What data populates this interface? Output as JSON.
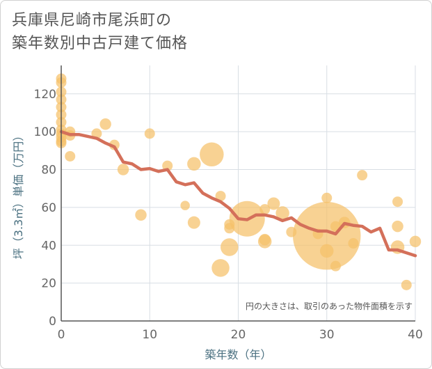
{
  "title_lines": [
    "兵庫県尼崎市尾浜町の",
    "築年数別中古戸建て価格"
  ],
  "chart_data": {
    "type": "scatter",
    "title": "兵庫県尼崎市尾浜町の築年数別中古戸建て価格",
    "xlabel": "築年数（年）",
    "ylabel": "坪（3.3㎡）単価（万円）",
    "xlim": [
      0,
      40
    ],
    "ylim": [
      0,
      135
    ],
    "xticks": [
      0,
      10,
      20,
      30,
      40
    ],
    "yticks": [
      0,
      20,
      40,
      60,
      80,
      100,
      120
    ],
    "grid": true,
    "annotation": "円の大きさは、取引のあった物件面積を示す",
    "colors": {
      "bubble": "#f5c06a",
      "line": "#d4705a",
      "grid": "#d8dee4"
    },
    "scatter": [
      {
        "x": 0,
        "y": 128,
        "s": 1
      },
      {
        "x": 0,
        "y": 126,
        "s": 1
      },
      {
        "x": 0,
        "y": 121,
        "s": 1
      },
      {
        "x": 0,
        "y": 117,
        "s": 1
      },
      {
        "x": 0,
        "y": 113,
        "s": 1
      },
      {
        "x": 0,
        "y": 109,
        "s": 1
      },
      {
        "x": 0,
        "y": 105,
        "s": 1
      },
      {
        "x": 0,
        "y": 101,
        "s": 1
      },
      {
        "x": 0,
        "y": 99,
        "s": 1
      },
      {
        "x": 0,
        "y": 97,
        "s": 1
      },
      {
        "x": 0,
        "y": 95,
        "s": 1
      },
      {
        "x": 0,
        "y": 94,
        "s": 1
      },
      {
        "x": 1,
        "y": 100,
        "s": 1
      },
      {
        "x": 1,
        "y": 98,
        "s": 1
      },
      {
        "x": 1,
        "y": 87,
        "s": 1
      },
      {
        "x": 4,
        "y": 99,
        "s": 1
      },
      {
        "x": 5,
        "y": 104,
        "s": 1.1
      },
      {
        "x": 6,
        "y": 93,
        "s": 1
      },
      {
        "x": 7,
        "y": 80,
        "s": 1.1
      },
      {
        "x": 9,
        "y": 56,
        "s": 1.1
      },
      {
        "x": 10,
        "y": 99,
        "s": 1
      },
      {
        "x": 12,
        "y": 82,
        "s": 1
      },
      {
        "x": 14,
        "y": 61,
        "s": 0.9
      },
      {
        "x": 15,
        "y": 83,
        "s": 1.3
      },
      {
        "x": 15,
        "y": 52,
        "s": 1.2
      },
      {
        "x": 17,
        "y": 88,
        "s": 2.3
      },
      {
        "x": 18,
        "y": 66,
        "s": 1
      },
      {
        "x": 18,
        "y": 28,
        "s": 1.7
      },
      {
        "x": 19,
        "y": 51,
        "s": 1
      },
      {
        "x": 19,
        "y": 49,
        "s": 1
      },
      {
        "x": 19,
        "y": 39,
        "s": 1.7
      },
      {
        "x": 21,
        "y": 54,
        "s": 3.4
      },
      {
        "x": 23,
        "y": 59,
        "s": 1
      },
      {
        "x": 23,
        "y": 43,
        "s": 1.1
      },
      {
        "x": 23,
        "y": 42,
        "s": 1.3
      },
      {
        "x": 24,
        "y": 62,
        "s": 1.2
      },
      {
        "x": 25,
        "y": 57,
        "s": 1.3
      },
      {
        "x": 26,
        "y": 47,
        "s": 1
      },
      {
        "x": 29,
        "y": 46,
        "s": 1
      },
      {
        "x": 30,
        "y": 45,
        "s": 6.5
      },
      {
        "x": 30,
        "y": 65,
        "s": 1
      },
      {
        "x": 30,
        "y": 37,
        "s": 1.3
      },
      {
        "x": 31,
        "y": 50,
        "s": 1
      },
      {
        "x": 31,
        "y": 29,
        "s": 1
      },
      {
        "x": 32,
        "y": 52,
        "s": 1.1
      },
      {
        "x": 33,
        "y": 41,
        "s": 1
      },
      {
        "x": 34,
        "y": 77,
        "s": 1
      },
      {
        "x": 38,
        "y": 63,
        "s": 1
      },
      {
        "x": 38,
        "y": 50,
        "s": 1.1
      },
      {
        "x": 38,
        "y": 39,
        "s": 1.3
      },
      {
        "x": 39,
        "y": 19,
        "s": 1
      },
      {
        "x": 40,
        "y": 42,
        "s": 1.1
      }
    ],
    "trend": {
      "x": [
        0,
        1,
        2,
        3,
        4,
        5,
        6,
        7,
        8,
        9,
        10,
        11,
        12,
        13,
        14,
        15,
        16,
        17,
        18,
        19,
        20,
        21,
        22,
        23,
        24,
        25,
        26,
        27,
        28,
        29,
        30,
        31,
        32,
        33,
        34,
        35,
        36,
        37,
        38,
        39,
        40
      ],
      "y": [
        100,
        98.5,
        98.5,
        97.5,
        96.5,
        94,
        92,
        84,
        83,
        80,
        80.5,
        79,
        80,
        73.5,
        72,
        73,
        67.5,
        65,
        63,
        59.5,
        54,
        53.5,
        56,
        56,
        55,
        53,
        54.5,
        51,
        49,
        47.5,
        47.5,
        46,
        51.5,
        50.5,
        50,
        47,
        49,
        37.5,
        37.5,
        36,
        34.5
      ]
    }
  }
}
